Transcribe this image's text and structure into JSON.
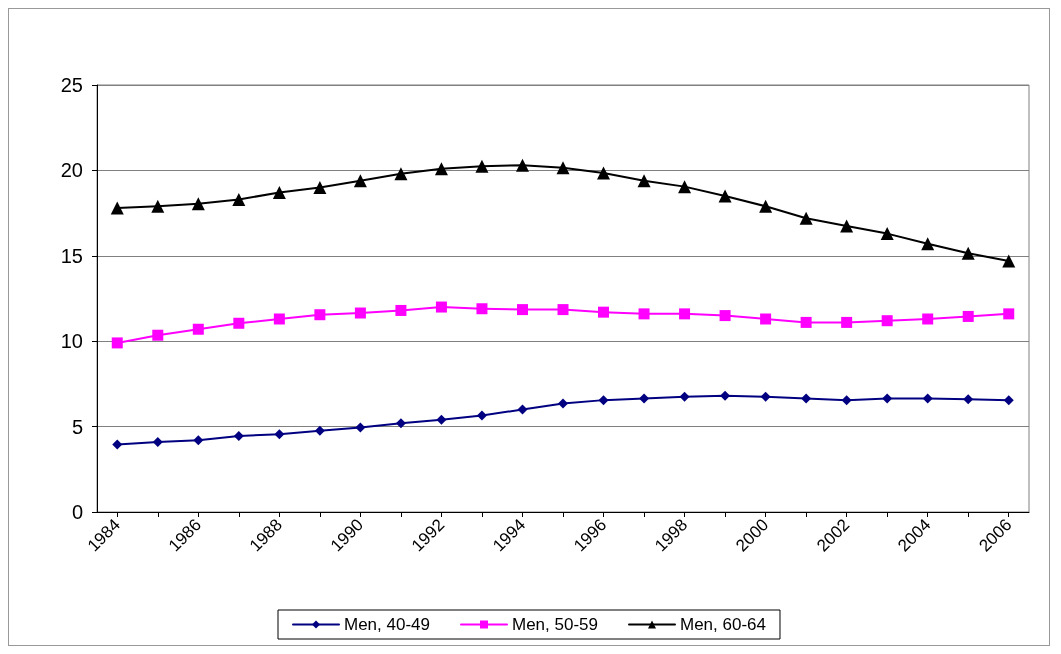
{
  "chart_data": {
    "type": "line",
    "categories": [
      "1984",
      null,
      "1986",
      null,
      "1988",
      null,
      "1990",
      null,
      "1992",
      null,
      "1994",
      null,
      "1996",
      null,
      "1998",
      null,
      "2000",
      null,
      "2002",
      null,
      "2004",
      null,
      "2006"
    ],
    "series": [
      {
        "name": "Men, 40-49",
        "color": "#000080",
        "marker": "diamond",
        "values": [
          3.95,
          4.1,
          4.2,
          4.45,
          4.55,
          4.75,
          4.95,
          5.2,
          5.4,
          5.65,
          6.0,
          6.35,
          6.55,
          6.65,
          6.75,
          6.8,
          6.75,
          6.65,
          6.55,
          6.65,
          6.65,
          6.6,
          6.55
        ]
      },
      {
        "name": "Men, 50-59",
        "color": "#ff00ff",
        "marker": "square",
        "values": [
          9.9,
          10.35,
          10.7,
          11.05,
          11.3,
          11.55,
          11.65,
          11.8,
          12.0,
          11.9,
          11.85,
          11.85,
          11.7,
          11.6,
          11.6,
          11.5,
          11.3,
          11.1,
          11.1,
          11.2,
          11.3,
          11.45,
          11.6
        ]
      },
      {
        "name": "Men, 60-64",
        "color": "#000000",
        "marker": "triangle",
        "values": [
          17.8,
          17.9,
          18.05,
          18.3,
          18.7,
          19.0,
          19.4,
          19.8,
          20.1,
          20.25,
          20.3,
          20.15,
          19.85,
          19.4,
          19.05,
          18.5,
          17.9,
          17.2,
          16.75,
          16.3,
          15.7,
          15.15,
          14.7
        ]
      }
    ],
    "ylim": [
      0,
      25
    ],
    "yticks": [
      0,
      5,
      10,
      15,
      20,
      25
    ],
    "grid": "y",
    "legend": "bottom",
    "line_style": "solid"
  }
}
